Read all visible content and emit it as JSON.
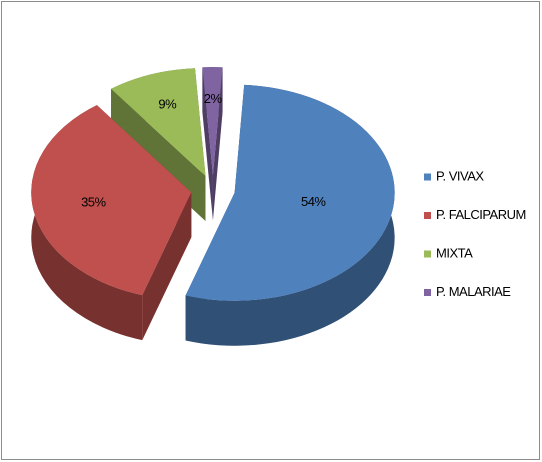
{
  "chart_data": {
    "type": "pie",
    "categories": [
      "P. VIVAX",
      "P. FALCIPARUM",
      "MIXTA",
      "P. MALARIAE"
    ],
    "values": [
      54,
      35,
      9,
      2
    ],
    "value_labels": [
      "54%",
      "35%",
      "9%",
      "2%"
    ],
    "colors": [
      "#4f81bd",
      "#c0504d",
      "#9bbb59",
      "#8064a2"
    ],
    "legend": "right"
  }
}
